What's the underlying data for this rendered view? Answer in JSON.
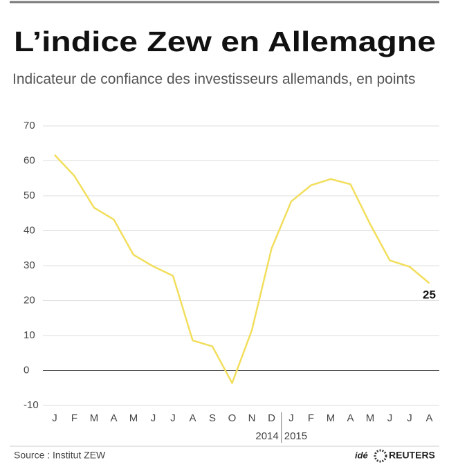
{
  "chart_data": {
    "type": "line",
    "title": "L’indice Zew en Allemagne",
    "subtitle": "Indicateur de confiance des investisseurs allemands, en points",
    "categories": [
      "J",
      "F",
      "M",
      "A",
      "M",
      "J",
      "J",
      "A",
      "S",
      "O",
      "N",
      "D",
      "J",
      "F",
      "M",
      "A",
      "M",
      "J",
      "J",
      "A"
    ],
    "years": [
      "2014",
      "2015"
    ],
    "values": [
      61.7,
      55.7,
      46.6,
      43.2,
      33.1,
      29.8,
      27.1,
      8.6,
      6.9,
      -3.6,
      11.5,
      34.9,
      48.4,
      53.0,
      54.8,
      53.3,
      41.9,
      31.5,
      29.7,
      25
    ],
    "color": "#f2de5c",
    "ylim": [
      -10,
      70
    ],
    "yticks": [
      -10,
      0,
      10,
      20,
      30,
      40,
      50,
      60,
      70
    ],
    "grid": true,
    "source": "Source : Institut ZEW",
    "credit": "idé",
    "logo": "REUTERS"
  }
}
